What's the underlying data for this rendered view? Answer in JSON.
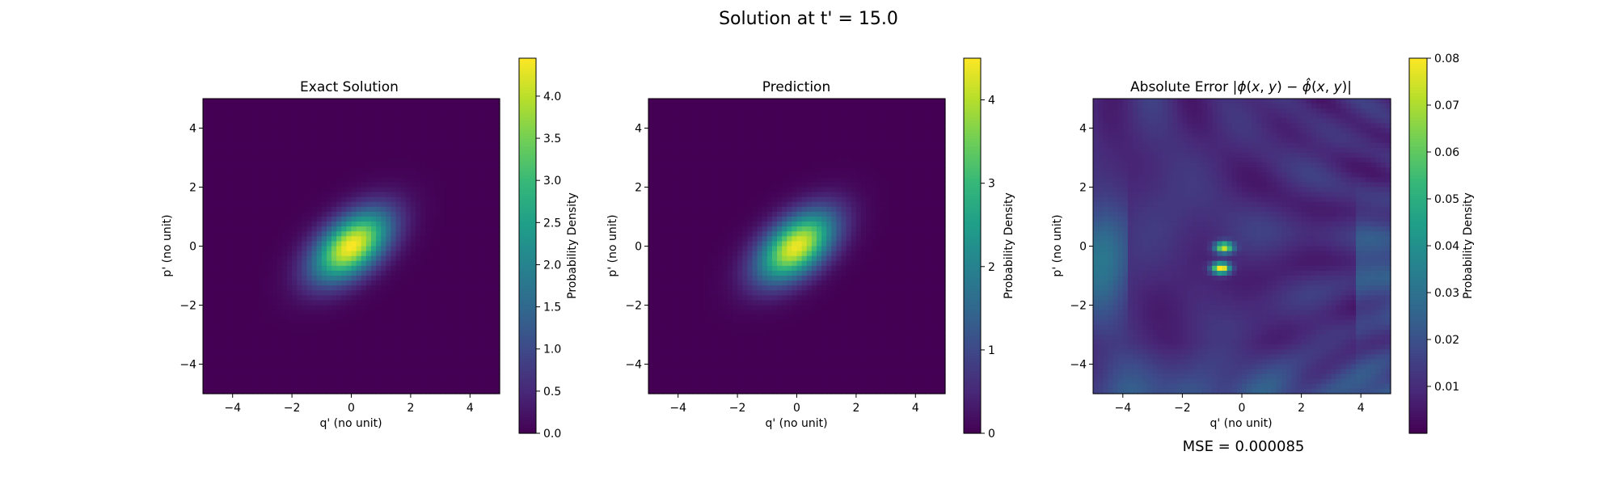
{
  "figure": {
    "suptitle": "Solution at t' = 15.0",
    "mse_text": "MSE = 0.000085"
  },
  "colors": {
    "viridis": [
      "#440154",
      "#482878",
      "#3e4989",
      "#31688e",
      "#26828e",
      "#1f9e89",
      "#35b779",
      "#6ece58",
      "#b5de2b",
      "#fde725"
    ]
  },
  "chart_data": [
    {
      "type": "heatmap",
      "title": "Exact Solution",
      "xlabel": "q' (no unit)",
      "ylabel": "p' (no unit)",
      "xlim": [
        -5,
        5
      ],
      "ylim": [
        -5,
        5
      ],
      "xticks": [
        -4,
        -2,
        0,
        2,
        4
      ],
      "yticks": [
        -4,
        -2,
        0,
        2,
        4
      ],
      "xtick_labels": [
        "−4",
        "−2",
        "0",
        "2",
        "4"
      ],
      "ytick_labels": [
        "−4",
        "−2",
        "0",
        "2",
        "4"
      ],
      "field": {
        "kind": "correlated_gaussian",
        "peak": 4.45,
        "center": [
          0,
          0
        ],
        "sigma_major": 1.05,
        "sigma_minor": 0.6,
        "angle_deg": 40
      },
      "colorbar": {
        "label": "Probability Density",
        "vmin": 0.0,
        "vmax": 4.45,
        "ticks": [
          0.0,
          0.5,
          1.0,
          1.5,
          2.0,
          2.5,
          3.0,
          3.5,
          4.0
        ],
        "tick_labels": [
          "0.0",
          "0.5",
          "1.0",
          "1.5",
          "2.0",
          "2.5",
          "3.0",
          "3.5",
          "4.0"
        ]
      }
    },
    {
      "type": "heatmap",
      "title": "Prediction",
      "xlabel": "q' (no unit)",
      "ylabel": "p' (no unit)",
      "xlim": [
        -5,
        5
      ],
      "ylim": [
        -5,
        5
      ],
      "xticks": [
        -4,
        -2,
        0,
        2,
        4
      ],
      "yticks": [
        -4,
        -2,
        0,
        2,
        4
      ],
      "xtick_labels": [
        "−4",
        "−2",
        "0",
        "2",
        "4"
      ],
      "ytick_labels": [
        "−4",
        "−2",
        "0",
        "2",
        "4"
      ],
      "field": {
        "kind": "correlated_gaussian",
        "peak": 4.4,
        "center": [
          -0.02,
          -0.02
        ],
        "sigma_major": 1.05,
        "sigma_minor": 0.6,
        "angle_deg": 40
      },
      "colorbar": {
        "label": "Probability Density",
        "vmin": 0,
        "vmax": 4.5,
        "ticks": [
          0,
          1,
          2,
          3,
          4
        ],
        "tick_labels": [
          "0",
          "1",
          "2",
          "3",
          "4"
        ]
      }
    },
    {
      "type": "heatmap",
      "title": "Absolute Error |ϕ(x,y) − ϕ̂(x,y)|",
      "xlabel": "q' (no unit)",
      "ylabel": "p' (no unit)",
      "xlim": [
        -5,
        5
      ],
      "ylim": [
        -5,
        5
      ],
      "xticks": [
        -4,
        -2,
        0,
        2,
        4
      ],
      "yticks": [
        -4,
        -2,
        0,
        2,
        4
      ],
      "xtick_labels": [
        "−4",
        "−2",
        "0",
        "2",
        "4"
      ],
      "ytick_labels": [
        "−4",
        "−2",
        "0",
        "2",
        "4"
      ],
      "field": {
        "kind": "interference_error",
        "peak": 0.08,
        "hotspots": [
          [
            -0.6,
            -0.05
          ],
          [
            -0.7,
            -0.75
          ]
        ]
      },
      "colorbar": {
        "label": "Probability Density",
        "vmin": 0.0,
        "vmax": 0.08,
        "ticks": [
          0.01,
          0.02,
          0.03,
          0.04,
          0.05,
          0.06,
          0.07,
          0.08
        ],
        "tick_labels": [
          "0.01",
          "0.02",
          "0.03",
          "0.04",
          "0.05",
          "0.06",
          "0.07",
          "0.08"
        ]
      }
    }
  ]
}
